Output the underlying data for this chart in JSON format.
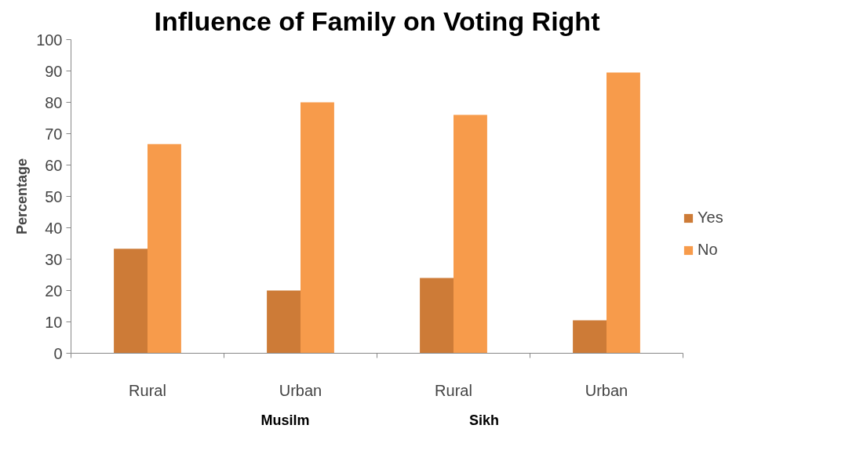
{
  "chart_data": {
    "type": "bar",
    "title": "Influence of Family on Voting Right",
    "ylabel": "Percentage",
    "categories": [
      "Rural",
      "Urban",
      "Rural",
      "Urban"
    ],
    "series": [
      {
        "name": "Yes",
        "color": "#cd7b37",
        "values": [
          33.3,
          20,
          24,
          10.5
        ]
      },
      {
        "name": "No",
        "color": "#f79b4b",
        "values": [
          66.7,
          80,
          76,
          89.5
        ]
      }
    ],
    "annotations": [
      "Musilm",
      "Sikh"
    ],
    "ylim": [
      0,
      100
    ],
    "yticks": [
      0,
      10,
      20,
      30,
      40,
      50,
      60,
      70,
      80,
      90,
      100
    ],
    "grid": false,
    "legend": "right"
  }
}
